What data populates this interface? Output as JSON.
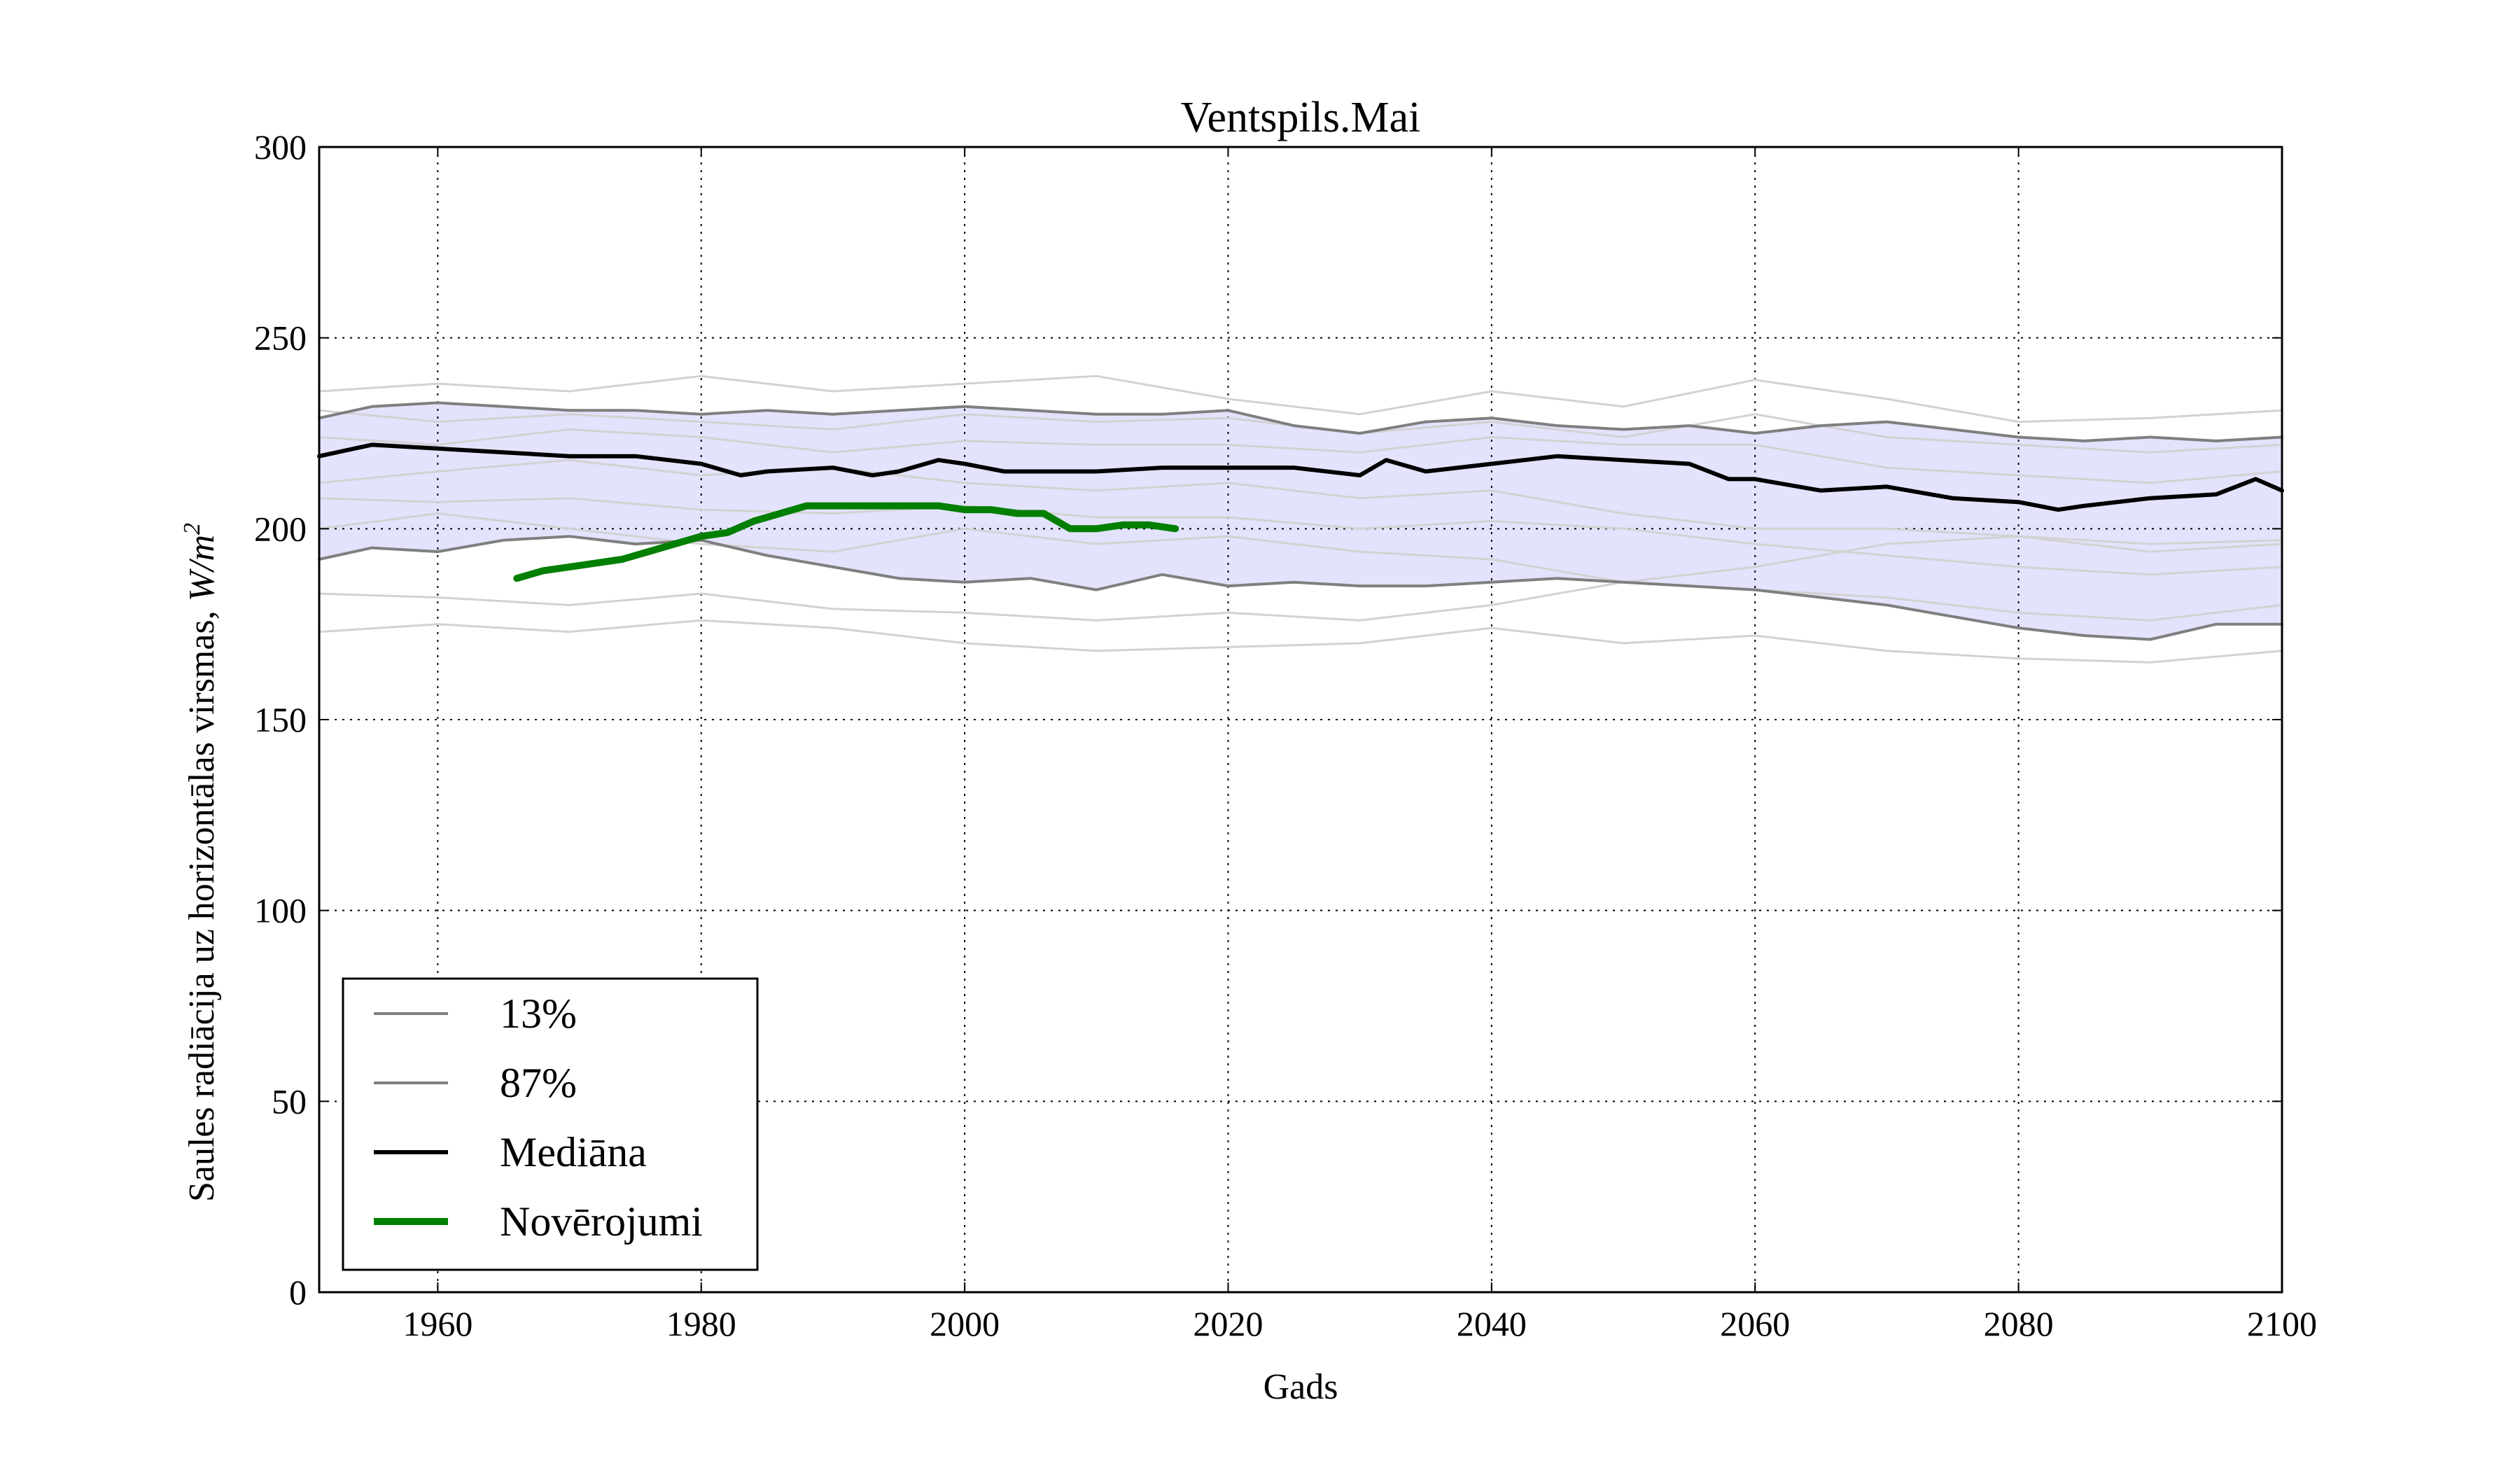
{
  "chart_data": {
    "type": "line",
    "title": "Ventspils.Mai",
    "xlabel": "Gads",
    "ylabel": "Saules radiācija uz horizontālas virsmas, ",
    "ylabel_unit": "W/m",
    "ylabel_unit_exp": "2",
    "xlim": [
      1951,
      2100
    ],
    "ylim": [
      0,
      300
    ],
    "x_ticks": [
      "1960",
      "1980",
      "2000",
      "2020",
      "2040",
      "2060",
      "2080",
      "2100"
    ],
    "y_ticks": [
      "0",
      "50",
      "100",
      "150",
      "200",
      "250",
      "300"
    ],
    "grid": true,
    "legend_position": "lower-left",
    "colors": {
      "band": "#e3e3fd",
      "ensemble": "#d2d2d2",
      "percentile": "#7f7f7f",
      "median": "#000000",
      "observations": "#007f00"
    },
    "series": [
      {
        "name": "13%",
        "role": "p13",
        "x": [
          1951,
          1955,
          1960,
          1965,
          1970,
          1975,
          1980,
          1985,
          1990,
          1995,
          2000,
          2005,
          2010,
          2015,
          2020,
          2025,
          2030,
          2035,
          2040,
          2045,
          2050,
          2055,
          2060,
          2065,
          2070,
          2075,
          2080,
          2085,
          2090,
          2095,
          2100
        ],
        "y": [
          192,
          195,
          194,
          197,
          198,
          196,
          197,
          193,
          190,
          187,
          186,
          187,
          184,
          188,
          185,
          186,
          185,
          185,
          186,
          187,
          186,
          185,
          184,
          182,
          180,
          177,
          174,
          172,
          171,
          175,
          175
        ]
      },
      {
        "name": "87%",
        "role": "p87",
        "x": [
          1951,
          1955,
          1960,
          1965,
          1970,
          1975,
          1980,
          1985,
          1990,
          1995,
          2000,
          2005,
          2010,
          2015,
          2020,
          2025,
          2030,
          2035,
          2040,
          2045,
          2050,
          2055,
          2060,
          2065,
          2070,
          2075,
          2080,
          2085,
          2090,
          2095,
          2100
        ],
        "y": [
          229,
          232,
          233,
          232,
          231,
          231,
          230,
          231,
          230,
          231,
          232,
          231,
          230,
          230,
          231,
          227,
          225,
          228,
          229,
          227,
          226,
          227,
          225,
          227,
          228,
          226,
          224,
          223,
          224,
          223,
          224
        ]
      },
      {
        "name": "Mediāna",
        "role": "median",
        "x": [
          1951,
          1955,
          1960,
          1965,
          1970,
          1975,
          1980,
          1983,
          1985,
          1990,
          1993,
          1995,
          1998,
          2000,
          2003,
          2005,
          2010,
          2015,
          2020,
          2025,
          2030,
          2032,
          2035,
          2040,
          2045,
          2050,
          2055,
          2058,
          2060,
          2065,
          2070,
          2075,
          2080,
          2083,
          2085,
          2090,
          2095,
          2098,
          2100
        ],
        "y": [
          219,
          222,
          221,
          220,
          219,
          219,
          217,
          214,
          215,
          216,
          214,
          215,
          218,
          217,
          215,
          215,
          215,
          216,
          216,
          216,
          214,
          218,
          215,
          217,
          219,
          218,
          217,
          213,
          213,
          210,
          211,
          208,
          207,
          205,
          206,
          208,
          209,
          213,
          210
        ]
      },
      {
        "name": "Novērojumi",
        "role": "obs",
        "x": [
          1966,
          1968,
          1970,
          1972,
          1974,
          1976,
          1978,
          1980,
          1982,
          1984,
          1986,
          1988,
          1990,
          1992,
          1994,
          1996,
          1998,
          2000,
          2002,
          2004,
          2006,
          2008,
          2010,
          2012,
          2014,
          2016
        ],
        "y": [
          187,
          189,
          190,
          191,
          192,
          194,
          196,
          198,
          199,
          202,
          204,
          206,
          206,
          206,
          206,
          206,
          206,
          205,
          205,
          204,
          204,
          200,
          200,
          201,
          201,
          200
        ]
      }
    ],
    "ensemble": [
      {
        "x": [
          1951,
          1960,
          1970,
          1980,
          1990,
          2000,
          2010,
          2020,
          2030,
          2040,
          2050,
          2060,
          2070,
          2080,
          2090,
          2100
        ],
        "y": [
          236,
          238,
          236,
          240,
          236,
          238,
          240,
          234,
          230,
          236,
          232,
          239,
          234,
          228,
          229,
          231
        ]
      },
      {
        "x": [
          1951,
          1960,
          1970,
          1980,
          1990,
          2000,
          2010,
          2020,
          2030,
          2040,
          2050,
          2060,
          2070,
          2080,
          2090,
          2100
        ],
        "y": [
          231,
          228,
          230,
          228,
          226,
          230,
          228,
          229,
          225,
          228,
          224,
          230,
          224,
          222,
          220,
          222
        ]
      },
      {
        "x": [
          1951,
          1960,
          1970,
          1980,
          1990,
          2000,
          2010,
          2020,
          2030,
          2040,
          2050,
          2060,
          2070,
          2080,
          2090,
          2100
        ],
        "y": [
          224,
          222,
          226,
          224,
          220,
          223,
          222,
          222,
          220,
          224,
          222,
          222,
          216,
          214,
          212,
          215
        ]
      },
      {
        "x": [
          1951,
          1960,
          1970,
          1980,
          1990,
          2000,
          2010,
          2020,
          2030,
          2040,
          2050,
          2060,
          2070,
          2080,
          2090,
          2100
        ],
        "y": [
          212,
          215,
          218,
          214,
          216,
          212,
          210,
          212,
          208,
          210,
          204,
          200,
          200,
          198,
          196,
          197
        ]
      },
      {
        "x": [
          1951,
          1960,
          1970,
          1980,
          1990,
          2000,
          2010,
          2020,
          2030,
          2040,
          2050,
          2060,
          2070,
          2080,
          2090,
          2100
        ],
        "y": [
          208,
          207,
          208,
          205,
          204,
          206,
          203,
          203,
          200,
          202,
          200,
          196,
          193,
          190,
          188,
          190
        ]
      },
      {
        "x": [
          1951,
          1960,
          1970,
          1980,
          1990,
          2000,
          2010,
          2020,
          2030,
          2040,
          2050,
          2060,
          2070,
          2080,
          2090,
          2100
        ],
        "y": [
          183,
          182,
          180,
          183,
          179,
          178,
          176,
          178,
          176,
          180,
          186,
          190,
          196,
          198,
          194,
          196
        ]
      },
      {
        "x": [
          1951,
          1960,
          1970,
          1980,
          1990,
          2000,
          2010,
          2020,
          2030,
          2040,
          2050,
          2060,
          2070,
          2080,
          2090,
          2100
        ],
        "y": [
          173,
          175,
          173,
          176,
          174,
          170,
          168,
          169,
          170,
          174,
          170,
          172,
          168,
          166,
          165,
          168
        ]
      },
      {
        "x": [
          1951,
          1960,
          1970,
          1980,
          1990,
          2000,
          2010,
          2020,
          2030,
          2040,
          2050,
          2060,
          2070,
          2080,
          2090,
          2100
        ],
        "y": [
          200,
          204,
          200,
          196,
          194,
          200,
          196,
          198,
          194,
          192,
          186,
          184,
          182,
          178,
          176,
          180
        ]
      }
    ],
    "legend": [
      {
        "label": "13%",
        "role": "p13"
      },
      {
        "label": "87%",
        "role": "p87"
      },
      {
        "label": "Mediāna",
        "role": "median"
      },
      {
        "label": "Novērojumi",
        "role": "obs"
      }
    ]
  }
}
